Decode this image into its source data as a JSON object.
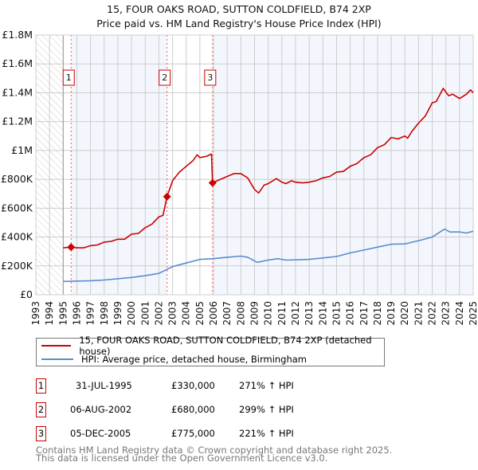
{
  "chart_data": {
    "type": "line",
    "title": "15, FOUR OAKS ROAD, SUTTON COLDFIELD, B74 2XP",
    "subtitle": "Price paid vs. HM Land Registry's House Price Index (HPI)",
    "xlim": [
      1993,
      2025
    ],
    "ylim": [
      0,
      1800000
    ],
    "x_ticks": [
      "1993",
      "1994",
      "1995",
      "1996",
      "1997",
      "1998",
      "1999",
      "2000",
      "2001",
      "2002",
      "2003",
      "2004",
      "2005",
      "2006",
      "2007",
      "2008",
      "2009",
      "2010",
      "2011",
      "2012",
      "2013",
      "2014",
      "2015",
      "2016",
      "2017",
      "2018",
      "2019",
      "2020",
      "2021",
      "2022",
      "2023",
      "2024",
      "2025"
    ],
    "y_ticks": [
      {
        "value": 0,
        "label": "£0"
      },
      {
        "value": 200000,
        "label": "£200K"
      },
      {
        "value": 400000,
        "label": "£400K"
      },
      {
        "value": 600000,
        "label": "£600K"
      },
      {
        "value": 800000,
        "label": "£800K"
      },
      {
        "value": 1000000,
        "label": "£1M"
      },
      {
        "value": 1200000,
        "label": "£1.2M"
      },
      {
        "value": 1400000,
        "label": "£1.4M"
      },
      {
        "value": 1600000,
        "label": "£1.6M"
      },
      {
        "value": 1800000,
        "label": "£1.8M"
      }
    ],
    "grid": true,
    "series": [
      {
        "name": "15, FOUR OAKS ROAD, SUTTON COLDFIELD, B74 2XP (detached house)",
        "color": "#cc0000",
        "points": [
          [
            1995,
            325000
          ],
          [
            1995.58,
            330000
          ],
          [
            1996,
            325000
          ],
          [
            1996.5,
            325000
          ],
          [
            1997,
            340000
          ],
          [
            1997.5,
            345000
          ],
          [
            1998,
            365000
          ],
          [
            1998.5,
            370000
          ],
          [
            1999,
            385000
          ],
          [
            1999.5,
            385000
          ],
          [
            2000,
            420000
          ],
          [
            2000.5,
            425000
          ],
          [
            2001,
            465000
          ],
          [
            2001.5,
            490000
          ],
          [
            2002,
            540000
          ],
          [
            2002.3,
            550000
          ],
          [
            2002.6,
            680000
          ],
          [
            2003,
            790000
          ],
          [
            2003.5,
            850000
          ],
          [
            2004,
            890000
          ],
          [
            2004.5,
            930000
          ],
          [
            2004.8,
            970000
          ],
          [
            2005,
            950000
          ],
          [
            2005.5,
            960000
          ],
          [
            2005.85,
            975000
          ],
          [
            2005.93,
            775000
          ],
          [
            2006.5,
            800000
          ],
          [
            2007,
            820000
          ],
          [
            2007.5,
            840000
          ],
          [
            2008,
            840000
          ],
          [
            2008.5,
            810000
          ],
          [
            2009,
            730000
          ],
          [
            2009.3,
            705000
          ],
          [
            2009.7,
            760000
          ],
          [
            2010,
            770000
          ],
          [
            2010.6,
            805000
          ],
          [
            2011,
            780000
          ],
          [
            2011.3,
            770000
          ],
          [
            2011.7,
            790000
          ],
          [
            2012,
            780000
          ],
          [
            2012.5,
            775000
          ],
          [
            2013,
            780000
          ],
          [
            2013.5,
            790000
          ],
          [
            2014,
            810000
          ],
          [
            2014.5,
            820000
          ],
          [
            2015,
            850000
          ],
          [
            2015.5,
            855000
          ],
          [
            2016,
            890000
          ],
          [
            2016.5,
            910000
          ],
          [
            2017,
            950000
          ],
          [
            2017.5,
            970000
          ],
          [
            2018,
            1020000
          ],
          [
            2018.5,
            1040000
          ],
          [
            2019,
            1090000
          ],
          [
            2019.5,
            1080000
          ],
          [
            2020,
            1100000
          ],
          [
            2020.2,
            1085000
          ],
          [
            2020.5,
            1130000
          ],
          [
            2021,
            1190000
          ],
          [
            2021.5,
            1240000
          ],
          [
            2022,
            1330000
          ],
          [
            2022.3,
            1340000
          ],
          [
            2022.8,
            1430000
          ],
          [
            2023.2,
            1380000
          ],
          [
            2023.5,
            1390000
          ],
          [
            2024,
            1360000
          ],
          [
            2024.5,
            1390000
          ],
          [
            2024.8,
            1420000
          ],
          [
            2025,
            1400000
          ]
        ]
      },
      {
        "name": "HPI: Average price, detached house, Birmingham",
        "color": "#5b8bd0",
        "points": [
          [
            1995,
            92000
          ],
          [
            1997,
            97000
          ],
          [
            1998,
            102000
          ],
          [
            2000,
            120000
          ],
          [
            2001,
            132000
          ],
          [
            2002,
            148000
          ],
          [
            2003,
            195000
          ],
          [
            2004,
            220000
          ],
          [
            2005,
            245000
          ],
          [
            2006,
            250000
          ],
          [
            2007,
            260000
          ],
          [
            2008,
            268000
          ],
          [
            2008.5,
            260000
          ],
          [
            2009.2,
            225000
          ],
          [
            2010,
            240000
          ],
          [
            2010.7,
            250000
          ],
          [
            2011.3,
            240000
          ],
          [
            2013,
            245000
          ],
          [
            2014,
            255000
          ],
          [
            2015,
            265000
          ],
          [
            2016,
            290000
          ],
          [
            2017,
            310000
          ],
          [
            2018,
            330000
          ],
          [
            2019,
            350000
          ],
          [
            2020,
            352000
          ],
          [
            2021,
            375000
          ],
          [
            2022,
            400000
          ],
          [
            2022.9,
            455000
          ],
          [
            2023.3,
            435000
          ],
          [
            2024,
            435000
          ],
          [
            2024.5,
            428000
          ],
          [
            2025,
            440000
          ]
        ]
      }
    ],
    "sales": [
      {
        "label": "1",
        "x": 1995.58,
        "price": 330000,
        "date": "31-JUL-1995",
        "price_label": "£330,000",
        "hpi": "271% ↑ HPI"
      },
      {
        "label": "2",
        "x": 2002.6,
        "price": 680000,
        "date": "06-AUG-2002",
        "price_label": "£680,000",
        "hpi": "299% ↑ HPI"
      },
      {
        "label": "3",
        "x": 2005.93,
        "price": 775000,
        "date": "05-DEC-2005",
        "price_label": "£775,000",
        "hpi": "221% ↑ HPI"
      }
    ],
    "hatched_before": 1995,
    "legend_position": "below"
  },
  "footer": {
    "line1": "Contains HM Land Registry data © Crown copyright and database right 2025.",
    "line2": "This data is licensed under the Open Government Licence v3.0."
  }
}
